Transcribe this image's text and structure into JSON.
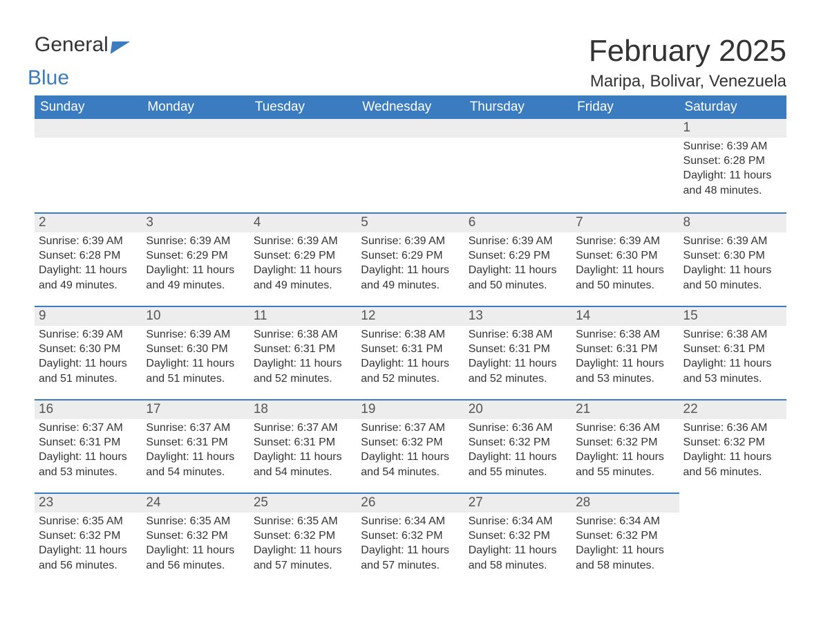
{
  "branding": {
    "general": "General",
    "blue": "Blue"
  },
  "header": {
    "month_year": "February 2025",
    "location": "Maripa, Bolivar, Venezuela"
  },
  "colors": {
    "accent": "#3a7cbf",
    "strip_bg": "#ededed",
    "text": "#333333",
    "header_text": "#ffffff",
    "background": "#ffffff"
  },
  "typography": {
    "title_fontsize": 44,
    "location_fontsize": 24,
    "dayhead_fontsize": 19,
    "body_fontsize": 16
  },
  "calendar": {
    "day_headers": [
      "Sunday",
      "Monday",
      "Tuesday",
      "Wednesday",
      "Thursday",
      "Friday",
      "Saturday"
    ],
    "weeks": [
      [
        null,
        null,
        null,
        null,
        null,
        null,
        {
          "n": "1",
          "sunrise": "6:39 AM",
          "sunset": "6:28 PM",
          "daylight": "11 hours and 48 minutes."
        }
      ],
      [
        {
          "n": "2",
          "sunrise": "6:39 AM",
          "sunset": "6:28 PM",
          "daylight": "11 hours and 49 minutes."
        },
        {
          "n": "3",
          "sunrise": "6:39 AM",
          "sunset": "6:29 PM",
          "daylight": "11 hours and 49 minutes."
        },
        {
          "n": "4",
          "sunrise": "6:39 AM",
          "sunset": "6:29 PM",
          "daylight": "11 hours and 49 minutes."
        },
        {
          "n": "5",
          "sunrise": "6:39 AM",
          "sunset": "6:29 PM",
          "daylight": "11 hours and 49 minutes."
        },
        {
          "n": "6",
          "sunrise": "6:39 AM",
          "sunset": "6:29 PM",
          "daylight": "11 hours and 50 minutes."
        },
        {
          "n": "7",
          "sunrise": "6:39 AM",
          "sunset": "6:30 PM",
          "daylight": "11 hours and 50 minutes."
        },
        {
          "n": "8",
          "sunrise": "6:39 AM",
          "sunset": "6:30 PM",
          "daylight": "11 hours and 50 minutes."
        }
      ],
      [
        {
          "n": "9",
          "sunrise": "6:39 AM",
          "sunset": "6:30 PM",
          "daylight": "11 hours and 51 minutes."
        },
        {
          "n": "10",
          "sunrise": "6:39 AM",
          "sunset": "6:30 PM",
          "daylight": "11 hours and 51 minutes."
        },
        {
          "n": "11",
          "sunrise": "6:38 AM",
          "sunset": "6:31 PM",
          "daylight": "11 hours and 52 minutes."
        },
        {
          "n": "12",
          "sunrise": "6:38 AM",
          "sunset": "6:31 PM",
          "daylight": "11 hours and 52 minutes."
        },
        {
          "n": "13",
          "sunrise": "6:38 AM",
          "sunset": "6:31 PM",
          "daylight": "11 hours and 52 minutes."
        },
        {
          "n": "14",
          "sunrise": "6:38 AM",
          "sunset": "6:31 PM",
          "daylight": "11 hours and 53 minutes."
        },
        {
          "n": "15",
          "sunrise": "6:38 AM",
          "sunset": "6:31 PM",
          "daylight": "11 hours and 53 minutes."
        }
      ],
      [
        {
          "n": "16",
          "sunrise": "6:37 AM",
          "sunset": "6:31 PM",
          "daylight": "11 hours and 53 minutes."
        },
        {
          "n": "17",
          "sunrise": "6:37 AM",
          "sunset": "6:31 PM",
          "daylight": "11 hours and 54 minutes."
        },
        {
          "n": "18",
          "sunrise": "6:37 AM",
          "sunset": "6:31 PM",
          "daylight": "11 hours and 54 minutes."
        },
        {
          "n": "19",
          "sunrise": "6:37 AM",
          "sunset": "6:32 PM",
          "daylight": "11 hours and 54 minutes."
        },
        {
          "n": "20",
          "sunrise": "6:36 AM",
          "sunset": "6:32 PM",
          "daylight": "11 hours and 55 minutes."
        },
        {
          "n": "21",
          "sunrise": "6:36 AM",
          "sunset": "6:32 PM",
          "daylight": "11 hours and 55 minutes."
        },
        {
          "n": "22",
          "sunrise": "6:36 AM",
          "sunset": "6:32 PM",
          "daylight": "11 hours and 56 minutes."
        }
      ],
      [
        {
          "n": "23",
          "sunrise": "6:35 AM",
          "sunset": "6:32 PM",
          "daylight": "11 hours and 56 minutes."
        },
        {
          "n": "24",
          "sunrise": "6:35 AM",
          "sunset": "6:32 PM",
          "daylight": "11 hours and 56 minutes."
        },
        {
          "n": "25",
          "sunrise": "6:35 AM",
          "sunset": "6:32 PM",
          "daylight": "11 hours and 57 minutes."
        },
        {
          "n": "26",
          "sunrise": "6:34 AM",
          "sunset": "6:32 PM",
          "daylight": "11 hours and 57 minutes."
        },
        {
          "n": "27",
          "sunrise": "6:34 AM",
          "sunset": "6:32 PM",
          "daylight": "11 hours and 58 minutes."
        },
        {
          "n": "28",
          "sunrise": "6:34 AM",
          "sunset": "6:32 PM",
          "daylight": "11 hours and 58 minutes."
        },
        null
      ]
    ],
    "labels": {
      "sunrise": "Sunrise",
      "sunset": "Sunset",
      "daylight": "Daylight"
    }
  }
}
